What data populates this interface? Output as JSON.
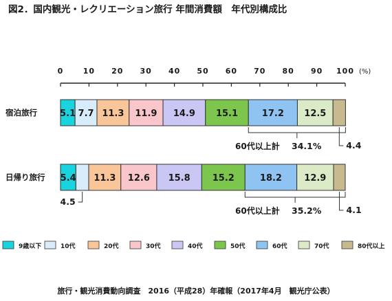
{
  "title": "図2．国内観光・レクリエーション旅行 年間消費額　年代別構成比",
  "source": "旅行・観光消費動向調査　2016（平成28）年確報（2017年4月　観光庁公表）",
  "chart_data": {
    "type": "bar",
    "orientation": "horizontal-stacked-100",
    "xlim": [
      0,
      100
    ],
    "xunit": "(%)",
    "xticks": [
      "0",
      "10",
      "20",
      "30",
      "40",
      "50",
      "60",
      "70",
      "80",
      "90",
      "100"
    ],
    "categories": [
      "宿泊旅行",
      "日帰り旅行"
    ],
    "series": [
      {
        "name": "9歳以下",
        "color": "#19d3df",
        "values": [
          5.1,
          5.4
        ]
      },
      {
        "name": "10代",
        "color": "#d9ecfb",
        "values": [
          7.7,
          4.5
        ]
      },
      {
        "name": "20代",
        "color": "#f9c69a",
        "values": [
          11.3,
          11.3
        ]
      },
      {
        "name": "30代",
        "color": "#f9c6cc",
        "values": [
          11.9,
          12.6
        ]
      },
      {
        "name": "40代",
        "color": "#cbc7f4",
        "values": [
          14.9,
          15.8
        ]
      },
      {
        "name": "50代",
        "color": "#7dc64d",
        "values": [
          15.1,
          15.2
        ]
      },
      {
        "name": "60代",
        "color": "#8ec3f2",
        "values": [
          17.2,
          18.2
        ]
      },
      {
        "name": "70代",
        "color": "#dcebc7",
        "values": [
          12.5,
          12.9
        ]
      },
      {
        "name": "80代以上",
        "color": "#c8b98e",
        "values": [
          4.4,
          4.1
        ]
      }
    ],
    "labels": [
      [
        "5.1",
        "7.7",
        "11.3",
        "11.9",
        "14.9",
        "15.1",
        "17.2",
        "12.5",
        ""
      ],
      [
        "5.4",
        "",
        "11.3",
        "12.6",
        "15.8",
        "15.2",
        "18.2",
        "12.9",
        ""
      ]
    ],
    "callouts": [
      {
        "row": 0,
        "text": "4.4",
        "segment": 8
      },
      {
        "row": 1,
        "text": "4.5",
        "segment": 1
      },
      {
        "row": 1,
        "text": "4.1",
        "segment": 8
      }
    ],
    "brackets": [
      {
        "row": 0,
        "label": "60代以上計",
        "value": "34.1%"
      },
      {
        "row": 1,
        "label": "60代以上計",
        "value": "35.2%"
      }
    ],
    "legend_position": "bottom"
  }
}
